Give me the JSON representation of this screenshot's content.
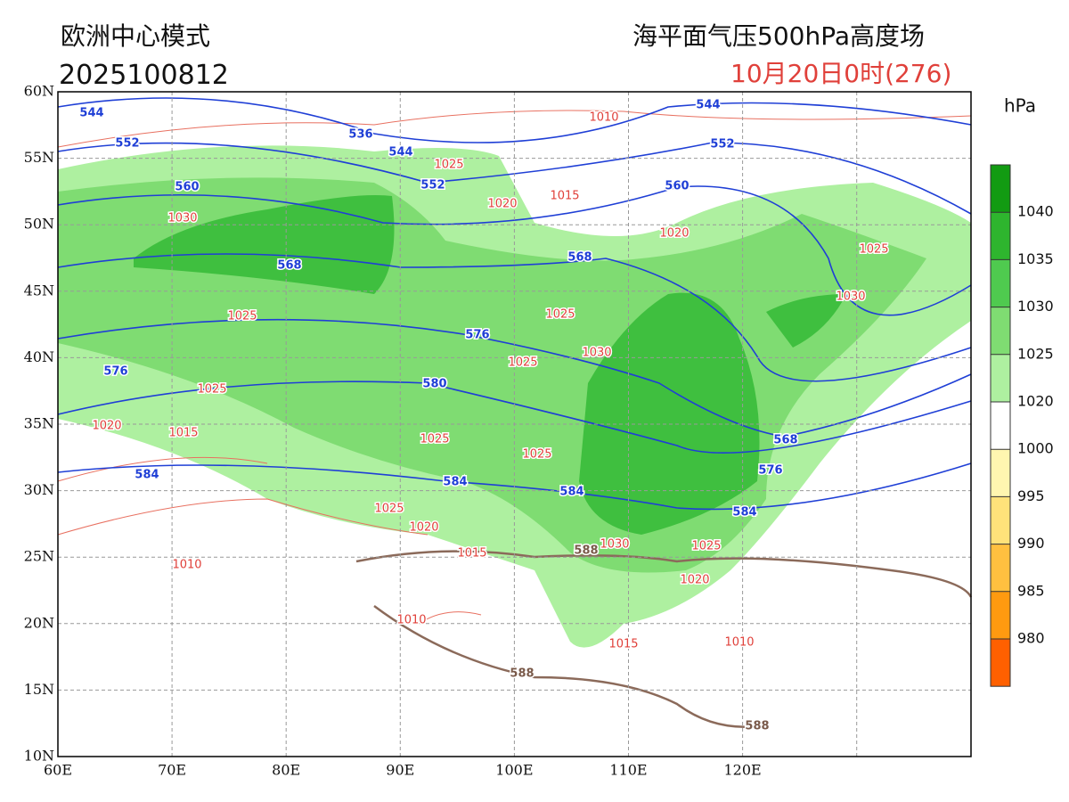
{
  "header": {
    "model": "欧洲中心模式",
    "init_time": "2025100812",
    "title": "海平面气压500hPa高度场",
    "valid_time": "10月20日0时(276)"
  },
  "map": {
    "lon_ticks": [
      "60E",
      "70E",
      "80E",
      "90E",
      "100E",
      "110E",
      "120E"
    ],
    "lat_ticks": [
      "60N",
      "55N",
      "50N",
      "45N",
      "40N",
      "35N",
      "30N",
      "25N",
      "20N",
      "15N",
      "10N"
    ],
    "height_labels": [
      544,
      536,
      544,
      552,
      552,
      560,
      568,
      576,
      576,
      580,
      584,
      584,
      584,
      544,
      552,
      560,
      568,
      568,
      576,
      584
    ],
    "ridge_labels": [
      588,
      588,
      588
    ],
    "pressure_labels": [
      1010,
      1025,
      1020,
      1015,
      1030,
      1020,
      1025,
      1030,
      1025,
      1025,
      1025,
      1030,
      1025,
      1020,
      1015,
      1025,
      1025,
      1025,
      1020,
      1015,
      1030,
      1025,
      1020,
      1010,
      1010,
      1015,
      1010
    ]
  },
  "colorbar": {
    "unit": "hPa",
    "levels": [
      1040,
      1035,
      1030,
      1025,
      1020,
      1000,
      995,
      990,
      985,
      980
    ],
    "colors": [
      "#129b12",
      "#2eb52e",
      "#4fca4f",
      "#7fdc72",
      "#aef0a0",
      "#ffffff",
      "#fff6b0",
      "#ffe27a",
      "#ffc040",
      "#ff9a10",
      "#ff6000"
    ]
  }
}
